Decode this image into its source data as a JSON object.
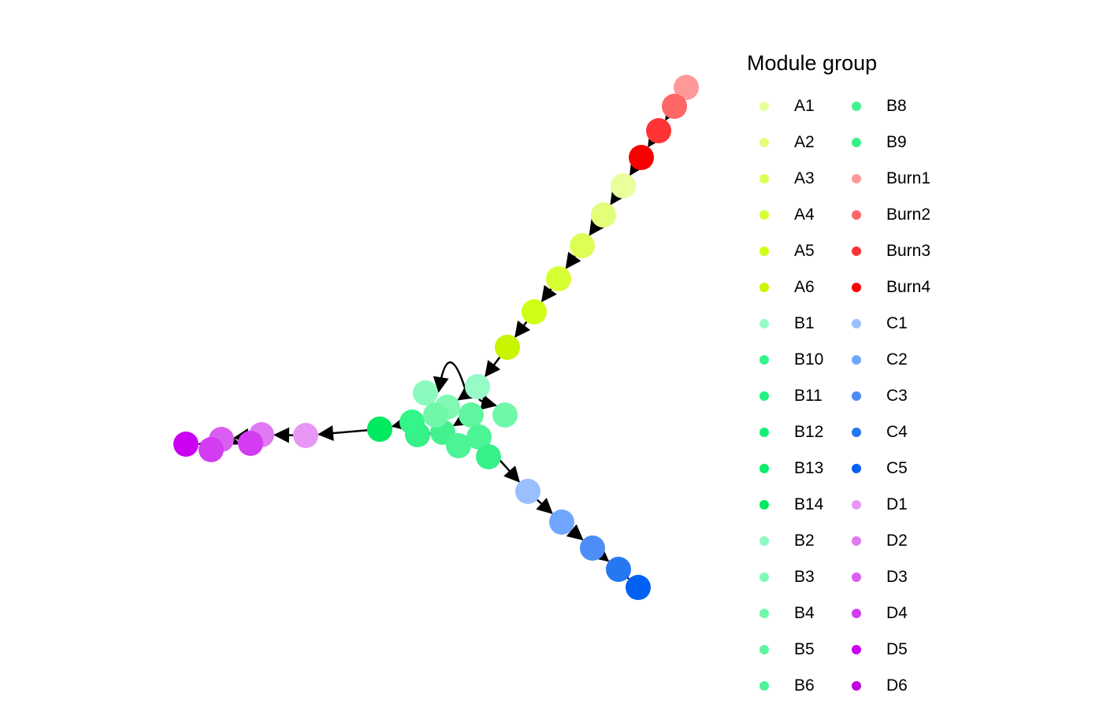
{
  "chart_data": {
    "type": "network",
    "legend": {
      "title": "Module group",
      "items": [
        {
          "label": "A1",
          "color": "#E8FF9C"
        },
        {
          "label": "A2",
          "color": "#E3FF7A"
        },
        {
          "label": "A3",
          "color": "#DDFF55"
        },
        {
          "label": "A4",
          "color": "#D6FF33"
        },
        {
          "label": "A5",
          "color": "#CFFF14"
        },
        {
          "label": "A6",
          "color": "#C8F500"
        },
        {
          "label": "B1",
          "color": "#97FBC8"
        },
        {
          "label": "B10",
          "color": "#33F58A"
        },
        {
          "label": "B11",
          "color": "#1FF27E"
        },
        {
          "label": "B12",
          "color": "#14EF74"
        },
        {
          "label": "B13",
          "color": "#0AED6A"
        },
        {
          "label": "B14",
          "color": "#00EA60"
        },
        {
          "label": "B2",
          "color": "#8CFABE"
        },
        {
          "label": "B3",
          "color": "#80F9B4"
        },
        {
          "label": "B4",
          "color": "#70F7AA"
        },
        {
          "label": "B5",
          "color": "#5EF6A0"
        },
        {
          "label": "B6",
          "color": "#4DF496"
        },
        {
          "label": "B8",
          "color": "#42F28F"
        },
        {
          "label": "B9",
          "color": "#38F088"
        },
        {
          "label": "Burn1",
          "color": "#FF9999"
        },
        {
          "label": "Burn2",
          "color": "#FF6666"
        },
        {
          "label": "Burn3",
          "color": "#FF3333"
        },
        {
          "label": "Burn4",
          "color": "#F70000"
        },
        {
          "label": "C1",
          "color": "#99BFFF"
        },
        {
          "label": "C2",
          "color": "#70A6FF"
        },
        {
          "label": "C3",
          "color": "#4C8DF6"
        },
        {
          "label": "C4",
          "color": "#2577F2"
        },
        {
          "label": "C5",
          "color": "#0061F2"
        },
        {
          "label": "D1",
          "color": "#E896F5"
        },
        {
          "label": "D2",
          "color": "#DF7AF2"
        },
        {
          "label": "D3",
          "color": "#DA5EF2"
        },
        {
          "label": "D4",
          "color": "#D33CF0"
        },
        {
          "label": "D5",
          "color": "#CB00F2"
        },
        {
          "label": "D6",
          "color": "#C000E0"
        }
      ]
    },
    "nodes": [
      {
        "id": "Burn1",
        "group": "Burn1"
      },
      {
        "id": "Burn2",
        "group": "Burn2"
      },
      {
        "id": "Burn3",
        "group": "Burn3"
      },
      {
        "id": "Burn4",
        "group": "Burn4"
      },
      {
        "id": "A1",
        "group": "A1"
      },
      {
        "id": "A2",
        "group": "A2"
      },
      {
        "id": "A3",
        "group": "A3"
      },
      {
        "id": "A4",
        "group": "A4"
      },
      {
        "id": "A5",
        "group": "A5"
      },
      {
        "id": "A6",
        "group": "A6"
      },
      {
        "id": "B1",
        "group": "B1"
      },
      {
        "id": "B2",
        "group": "B2"
      },
      {
        "id": "B3",
        "group": "B3"
      },
      {
        "id": "B4",
        "group": "B4"
      },
      {
        "id": "B5",
        "group": "B5"
      },
      {
        "id": "B6",
        "group": "B6"
      },
      {
        "id": "B8",
        "group": "B8"
      },
      {
        "id": "B9",
        "group": "B9"
      },
      {
        "id": "B10",
        "group": "B10"
      },
      {
        "id": "B11",
        "group": "B11"
      },
      {
        "id": "B12",
        "group": "B12"
      },
      {
        "id": "B13",
        "group": "B13"
      },
      {
        "id": "B14",
        "group": "B14"
      },
      {
        "id": "B7",
        "group": "B6"
      },
      {
        "id": "B15",
        "group": "B4"
      },
      {
        "id": "C1",
        "group": "C1"
      },
      {
        "id": "C2",
        "group": "C2"
      },
      {
        "id": "C3",
        "group": "C3"
      },
      {
        "id": "C4",
        "group": "C4"
      },
      {
        "id": "C5",
        "group": "C5"
      },
      {
        "id": "D1",
        "group": "D1"
      },
      {
        "id": "D2",
        "group": "D2"
      },
      {
        "id": "D3",
        "group": "D3"
      },
      {
        "id": "D4",
        "group": "D4"
      },
      {
        "id": "D5",
        "group": "D5"
      }
    ],
    "edges": [
      {
        "from": "Burn1",
        "to": "Burn2"
      },
      {
        "from": "Burn2",
        "to": "Burn3"
      },
      {
        "from": "Burn3",
        "to": "Burn4"
      },
      {
        "from": "Burn4",
        "to": "A1"
      },
      {
        "from": "A1",
        "to": "A2"
      },
      {
        "from": "A2",
        "to": "A3"
      },
      {
        "from": "A3",
        "to": "A4"
      },
      {
        "from": "A4",
        "to": "A5"
      },
      {
        "from": "A5",
        "to": "A6"
      },
      {
        "from": "A6",
        "to": "B1"
      },
      {
        "from": "B1",
        "to": "B2",
        "curve": true
      },
      {
        "from": "B1",
        "to": "B4",
        "curve": true
      },
      {
        "from": "B1",
        "to": "B3"
      },
      {
        "from": "B3",
        "to": "B5"
      },
      {
        "from": "B5",
        "to": "B8"
      },
      {
        "from": "B8",
        "to": "B9"
      },
      {
        "from": "B9",
        "to": "B10"
      },
      {
        "from": "B10",
        "to": "B11"
      },
      {
        "from": "B11",
        "to": "B12"
      },
      {
        "from": "B12",
        "to": "B13"
      },
      {
        "from": "B13",
        "to": "B14"
      },
      {
        "from": "B14",
        "to": "D1"
      },
      {
        "from": "D1",
        "to": "D2"
      },
      {
        "from": "D2",
        "to": "D3"
      },
      {
        "from": "D3",
        "to": "D4"
      },
      {
        "from": "D4",
        "to": "D5"
      },
      {
        "from": "B6",
        "to": "C1"
      },
      {
        "from": "C1",
        "to": "C2"
      },
      {
        "from": "C2",
        "to": "C3"
      },
      {
        "from": "C3",
        "to": "C4"
      },
      {
        "from": "C4",
        "to": "C5"
      }
    ]
  }
}
